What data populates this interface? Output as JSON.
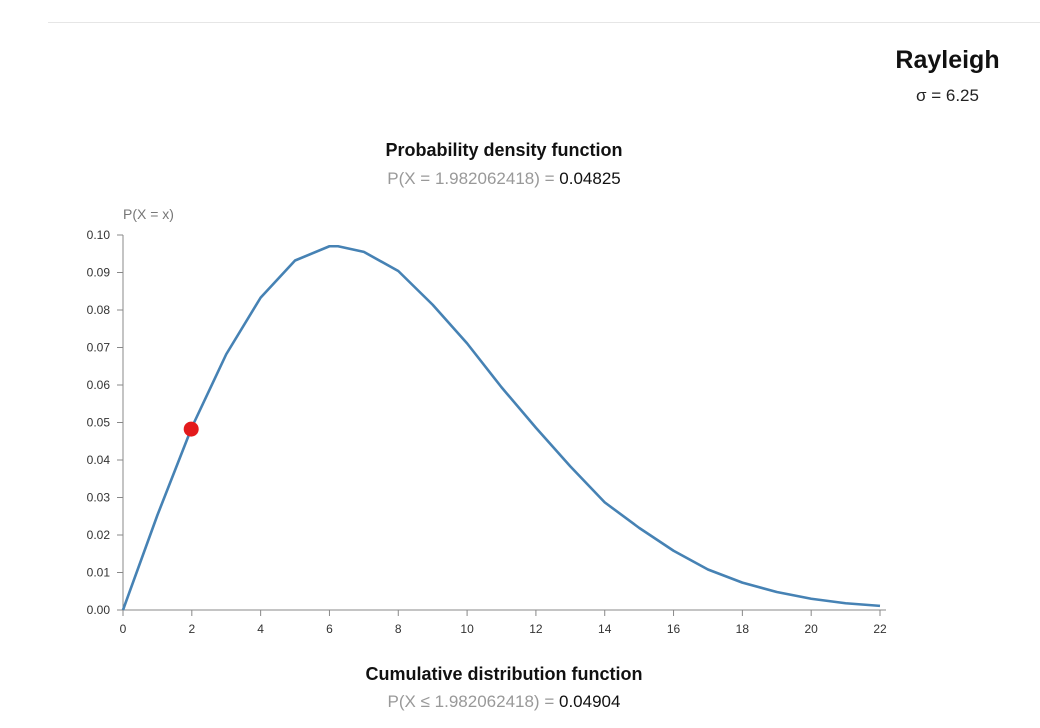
{
  "distribution": {
    "name": "Rayleigh",
    "param_text": "σ = 6.25"
  },
  "pdf": {
    "title": "Probability density function",
    "expr": "P(X = 1.982062418) =",
    "value": "0.04825"
  },
  "cdf": {
    "title": "Cumulative distribution function",
    "expr": "P(X ≤ 1.982062418) =",
    "value": "0.04904"
  },
  "chart_data": {
    "type": "line",
    "ylabel": "P(X = x)",
    "xlabel": "",
    "sigma": 6.25,
    "xlim": [
      0,
      22
    ],
    "ylim": [
      0,
      0.1
    ],
    "x_ticks": [
      0,
      2,
      4,
      6,
      8,
      10,
      12,
      14,
      16,
      18,
      20,
      22
    ],
    "y_ticks": [
      "0.00",
      "0.01",
      "0.02",
      "0.03",
      "0.04",
      "0.05",
      "0.06",
      "0.07",
      "0.08",
      "0.09",
      "0.10"
    ],
    "series": [
      {
        "x": [
          0,
          1,
          2,
          3,
          4,
          5,
          6,
          6.25,
          7,
          8,
          9,
          10,
          11,
          12,
          13,
          14,
          15,
          16,
          17,
          18,
          19,
          20,
          21,
          22
        ],
        "y": [
          0,
          0.0253,
          0.0487,
          0.0682,
          0.0833,
          0.0932,
          0.097,
          0.097,
          0.0955,
          0.0904,
          0.0814,
          0.0711,
          0.0594,
          0.0486,
          0.0383,
          0.0287,
          0.0219,
          0.0158,
          0.0108,
          0.0073,
          0.0048,
          0.003,
          0.0018,
          0.0011
        ],
        "color": "#4682b4"
      }
    ],
    "marker": {
      "x": 1.982062418,
      "y": 0.04825,
      "color": "#e31a1c"
    },
    "grid": false
  }
}
